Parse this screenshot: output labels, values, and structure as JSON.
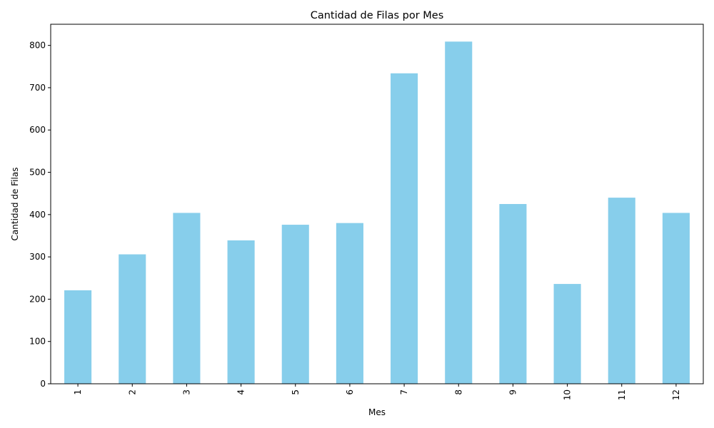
{
  "chart_data": {
    "type": "bar",
    "title": "Cantidad de Filas por Mes",
    "xlabel": "Mes",
    "ylabel": "Cantidad de Filas",
    "categories": [
      "1",
      "2",
      "3",
      "4",
      "5",
      "6",
      "7",
      "8",
      "9",
      "10",
      "11",
      "12"
    ],
    "values": [
      221,
      306,
      404,
      339,
      376,
      380,
      734,
      809,
      425,
      236,
      440,
      404
    ],
    "ylim": [
      0,
      850
    ],
    "yticks": [
      0,
      100,
      200,
      300,
      400,
      500,
      600,
      700,
      800
    ],
    "bar_color": "#87CEEB",
    "grid": false,
    "legend": "none"
  }
}
